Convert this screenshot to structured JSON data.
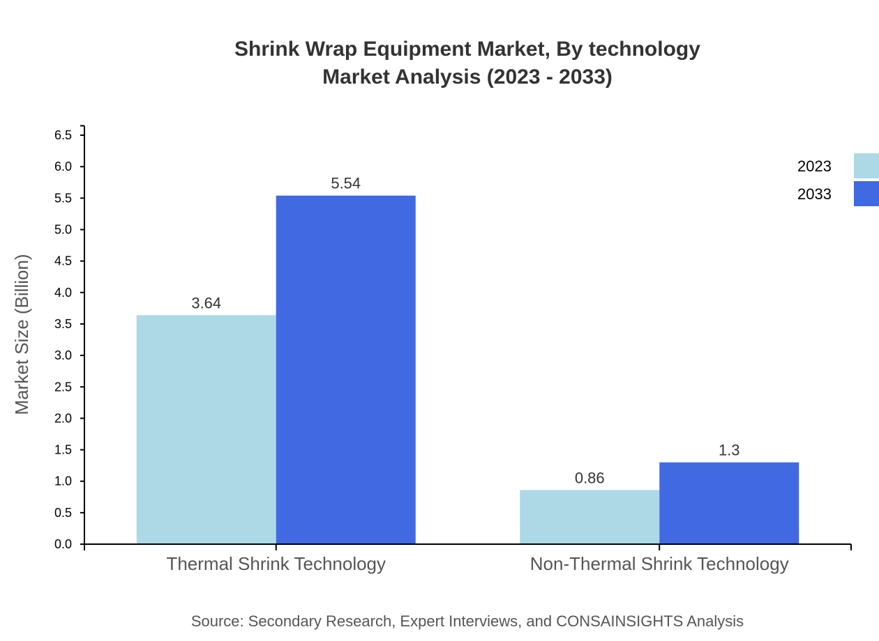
{
  "chart_data": {
    "type": "bar",
    "title": "Shrink Wrap Equipment Market, By technology",
    "subtitle": "Market Analysis (2023 - 2033)",
    "xlabel": "",
    "ylabel": "Market Size (Billion)",
    "ylim": [
      0,
      6.65
    ],
    "yticks": [
      "0.0",
      "0.5",
      "1.0",
      "1.5",
      "2.0",
      "2.5",
      "3.0",
      "3.5",
      "4.0",
      "4.5",
      "5.0",
      "5.5",
      "6.0",
      "6.5"
    ],
    "categories": [
      "Thermal Shrink Technology",
      "Non-Thermal Shrink Technology"
    ],
    "series": [
      {
        "name": "2023",
        "values": [
          3.64,
          0.86
        ],
        "labels": [
          "3.64",
          "0.86"
        ],
        "color": "#add8e6"
      },
      {
        "name": "2033",
        "values": [
          5.54,
          1.3
        ],
        "labels": [
          "5.54",
          "1.3"
        ],
        "color": "#4169e1"
      }
    ],
    "grid": false,
    "legend": "top-right",
    "source": "Source: Secondary Research, Expert Interviews, and CONSAINSIGHTS Analysis"
  }
}
